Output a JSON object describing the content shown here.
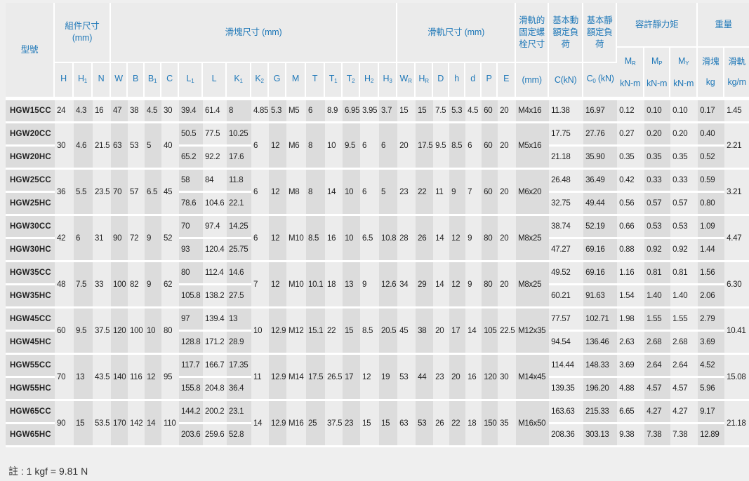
{
  "header": {
    "model": "型號",
    "assembly": "組件尺寸 (mm)",
    "block": "滑塊尺寸 (mm)",
    "rail": "滑軌尺寸 (mm)",
    "bolt": "滑軌的固定螺栓尺寸",
    "bolt_unit": "(mm)",
    "dynamic": "基本動額定負荷",
    "dynamic_unit": "C(kN)",
    "static": "基本靜額定負荷",
    "static_sym": "C",
    "static_sub": "0",
    "static_unit": " (kN)",
    "moment": "容許靜力矩",
    "weight": "重量",
    "moment_cols": [
      {
        "sym": "M",
        "sub": "R",
        "unit": "kN-m"
      },
      {
        "sym": "M",
        "sub": "P",
        "unit": "kN-m"
      },
      {
        "sym": "M",
        "sub": "Y",
        "unit": "kN-m"
      }
    ],
    "weight_cols": [
      {
        "sym": "滑塊",
        "sub": "",
        "unit": "kg"
      },
      {
        "sym": "滑軌",
        "sub": "",
        "unit": "kg/m"
      }
    ],
    "dim_cols": [
      {
        "sym": "H",
        "sub": ""
      },
      {
        "sym": "H",
        "sub": "1"
      },
      {
        "sym": "N",
        "sub": ""
      },
      {
        "sym": "W",
        "sub": ""
      },
      {
        "sym": "B",
        "sub": ""
      },
      {
        "sym": "B",
        "sub": "1"
      },
      {
        "sym": "C",
        "sub": ""
      },
      {
        "sym": "L",
        "sub": "1"
      },
      {
        "sym": "L",
        "sub": ""
      },
      {
        "sym": "K",
        "sub": "1"
      },
      {
        "sym": "K",
        "sub": "2"
      },
      {
        "sym": "G",
        "sub": ""
      },
      {
        "sym": "M",
        "sub": ""
      },
      {
        "sym": "T",
        "sub": ""
      },
      {
        "sym": "T",
        "sub": "1"
      },
      {
        "sym": "T",
        "sub": "2"
      },
      {
        "sym": "H",
        "sub": "2"
      },
      {
        "sym": "H",
        "sub": "3"
      },
      {
        "sym": "W",
        "sub": "R"
      },
      {
        "sym": "H",
        "sub": "R"
      },
      {
        "sym": "D",
        "sub": ""
      },
      {
        "sym": "h",
        "sub": ""
      },
      {
        "sym": "d",
        "sub": ""
      },
      {
        "sym": "P",
        "sub": ""
      },
      {
        "sym": "E",
        "sub": ""
      }
    ]
  },
  "groups": [
    {
      "shared": [
        "24",
        "4.3",
        "16",
        "47",
        "38",
        "4.5",
        "30",
        "4.85",
        "5.3",
        "M5",
        "6",
        "8.9",
        "6.95",
        "3.95",
        "3.7",
        "15",
        "15",
        "7.5",
        "5.3",
        "4.5",
        "60",
        "20",
        "M4x16",
        "1.45"
      ],
      "rows": [
        [
          "HGW15CC",
          "39.4",
          "61.4",
          "8",
          "11.38",
          "16.97",
          "0.12",
          "0.10",
          "0.10",
          "0.17"
        ]
      ]
    },
    {
      "shared": [
        "30",
        "4.6",
        "21.5",
        "63",
        "53",
        "5",
        "40",
        "6",
        "12",
        "M6",
        "8",
        "10",
        "9.5",
        "6",
        "6",
        "20",
        "17.5",
        "9.5",
        "8.5",
        "6",
        "60",
        "20",
        "M5x16",
        "2.21"
      ],
      "rows": [
        [
          "HGW20CC",
          "50.5",
          "77.5",
          "10.25",
          "17.75",
          "27.76",
          "0.27",
          "0.20",
          "0.20",
          "0.40"
        ],
        [
          "HGW20HC",
          "65.2",
          "92.2",
          "17.6",
          "21.18",
          "35.90",
          "0.35",
          "0.35",
          "0.35",
          "0.52"
        ]
      ]
    },
    {
      "shared": [
        "36",
        "5.5",
        "23.5",
        "70",
        "57",
        "6.5",
        "45",
        "6",
        "12",
        "M8",
        "8",
        "14",
        "10",
        "6",
        "5",
        "23",
        "22",
        "11",
        "9",
        "7",
        "60",
        "20",
        "M6x20",
        "3.21"
      ],
      "rows": [
        [
          "HGW25CC",
          "58",
          "84",
          "11.8",
          "26.48",
          "36.49",
          "0.42",
          "0.33",
          "0.33",
          "0.59"
        ],
        [
          "HGW25HC",
          "78.6",
          "104.6",
          "22.1",
          "32.75",
          "49.44",
          "0.56",
          "0.57",
          "0.57",
          "0.80"
        ]
      ]
    },
    {
      "shared": [
        "42",
        "6",
        "31",
        "90",
        "72",
        "9",
        "52",
        "6",
        "12",
        "M10",
        "8.5",
        "16",
        "10",
        "6.5",
        "10.8",
        "28",
        "26",
        "14",
        "12",
        "9",
        "80",
        "20",
        "M8x25",
        "4.47"
      ],
      "rows": [
        [
          "HGW30CC",
          "70",
          "97.4",
          "14.25",
          "38.74",
          "52.19",
          "0.66",
          "0.53",
          "0.53",
          "1.09"
        ],
        [
          "HGW30HC",
          "93",
          "120.4",
          "25.75",
          "47.27",
          "69.16",
          "0.88",
          "0.92",
          "0.92",
          "1.44"
        ]
      ]
    },
    {
      "shared": [
        "48",
        "7.5",
        "33",
        "100",
        "82",
        "9",
        "62",
        "7",
        "12",
        "M10",
        "10.1",
        "18",
        "13",
        "9",
        "12.6",
        "34",
        "29",
        "14",
        "12",
        "9",
        "80",
        "20",
        "M8x25",
        "6.30"
      ],
      "rows": [
        [
          "HGW35CC",
          "80",
          "112.4",
          "14.6",
          "49.52",
          "69.16",
          "1.16",
          "0.81",
          "0.81",
          "1.56"
        ],
        [
          "HGW35HC",
          "105.8",
          "138.2",
          "27.5",
          "60.21",
          "91.63",
          "1.54",
          "1.40",
          "1.40",
          "2.06"
        ]
      ]
    },
    {
      "shared": [
        "60",
        "9.5",
        "37.5",
        "120",
        "100",
        "10",
        "80",
        "10",
        "12.9",
        "M12",
        "15.1",
        "22",
        "15",
        "8.5",
        "20.5",
        "45",
        "38",
        "20",
        "17",
        "14",
        "105",
        "22.5",
        "M12x35",
        "10.41"
      ],
      "rows": [
        [
          "HGW45CC",
          "97",
          "139.4",
          "13",
          "77.57",
          "102.71",
          "1.98",
          "1.55",
          "1.55",
          "2.79"
        ],
        [
          "HGW45HC",
          "128.8",
          "171.2",
          "28.9",
          "94.54",
          "136.46",
          "2.63",
          "2.68",
          "2.68",
          "3.69"
        ]
      ]
    },
    {
      "shared": [
        "70",
        "13",
        "43.5",
        "140",
        "116",
        "12",
        "95",
        "11",
        "12.9",
        "M14",
        "17.5",
        "26.5",
        "17",
        "12",
        "19",
        "53",
        "44",
        "23",
        "20",
        "16",
        "120",
        "30",
        "M14x45",
        "15.08"
      ],
      "rows": [
        [
          "HGW55CC",
          "117.7",
          "166.7",
          "17.35",
          "114.44",
          "148.33",
          "3.69",
          "2.64",
          "2.64",
          "4.52"
        ],
        [
          "HGW55HC",
          "155.8",
          "204.8",
          "36.4",
          "139.35",
          "196.20",
          "4.88",
          "4.57",
          "4.57",
          "5.96"
        ]
      ]
    },
    {
      "shared": [
        "90",
        "15",
        "53.5",
        "170",
        "142",
        "14",
        "110",
        "14",
        "12.9",
        "M16",
        "25",
        "37.5",
        "23",
        "15",
        "15",
        "63",
        "53",
        "26",
        "22",
        "18",
        "150",
        "35",
        "M16x50",
        "21.18"
      ],
      "rows": [
        [
          "HGW65CC",
          "144.2",
          "200.2",
          "23.1",
          "163.63",
          "215.33",
          "6.65",
          "4.27",
          "4.27",
          "9.17"
        ],
        [
          "HGW65HC",
          "203.6",
          "259.6",
          "52.8",
          "208.36",
          "303.13",
          "9.38",
          "7.38",
          "7.38",
          "12.89"
        ]
      ]
    }
  ],
  "footnote": "註 : 1 kgf = 9.81 N",
  "colors": {
    "header_text": "#1f78b8",
    "cell_light": "#ececec",
    "cell_dark": "#dcdcdc",
    "background": "#efefef"
  }
}
